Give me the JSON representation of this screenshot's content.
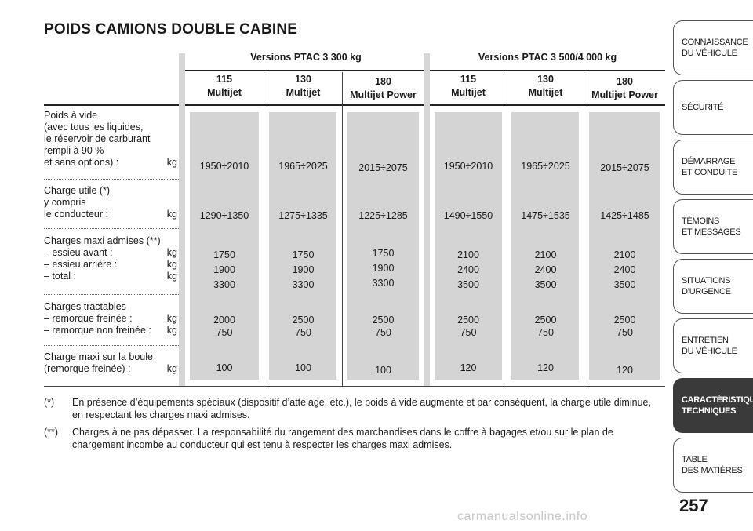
{
  "title": "POIDS CAMIONS DOUBLE CABINE",
  "groups": [
    {
      "label": "Versions PTAC 3 300 kg"
    },
    {
      "label": "Versions PTAC 3 500/4 000 kg"
    }
  ],
  "columns": [
    {
      "line1": "115",
      "line2": "Multijet"
    },
    {
      "line1": "130",
      "line2": "Multijet"
    },
    {
      "line1": "180",
      "line2": "Multijet Power"
    },
    {
      "line1": "115",
      "line2": "Multijet"
    },
    {
      "line1": "130",
      "line2": "Multijet"
    },
    {
      "line1": "180",
      "line2": "Multijet Power"
    }
  ],
  "rows": [
    {
      "label_lines": [
        "Poids à vide",
        "(avec tous les liquides,",
        "le réservoir de carburant",
        "rempli à 90 %",
        "et sans options) :"
      ],
      "unit": "kg",
      "values": [
        "1950÷2010",
        "1965÷2025",
        "2015÷2075",
        "1950÷2010",
        "1965÷2025",
        "2015÷2075"
      ]
    },
    {
      "label_lines": [
        "Charge utile (*)",
        "y compris",
        "le conducteur :"
      ],
      "unit": "kg",
      "values": [
        "1290÷1350",
        "1275÷1335",
        "1225÷1285",
        "1490÷1550",
        "1475÷1535",
        "1425÷1485"
      ]
    },
    {
      "label_lines": [
        "Charges maxi admises (**)",
        "– essieu avant :",
        "– essieu arrière :",
        "– total :"
      ],
      "units": [
        "",
        "kg",
        "kg",
        "kg"
      ],
      "values": [
        [
          "1750",
          "1900",
          "3300"
        ],
        [
          "1750",
          "1900",
          "3300"
        ],
        [
          "1750",
          "1900",
          "3300"
        ],
        [
          "2100",
          "2400",
          "3500"
        ],
        [
          "2100",
          "2400",
          "3500"
        ],
        [
          "2100",
          "2400",
          "3500"
        ]
      ]
    },
    {
      "label_lines": [
        "Charges tractables",
        "– remorque freinée :",
        "– remorque non freinée :"
      ],
      "units": [
        "",
        "kg",
        "kg"
      ],
      "values": [
        [
          "2000",
          "750"
        ],
        [
          "2500",
          "750"
        ],
        [
          "2500",
          "750"
        ],
        [
          "2500",
          "750"
        ],
        [
          "2500",
          "750"
        ],
        [
          "2500",
          "750"
        ]
      ]
    },
    {
      "label_lines": [
        "Charge maxi sur la boule",
        "(remorque freinée) :"
      ],
      "units": [
        "",
        "kg"
      ],
      "values": [
        "100",
        "100",
        "100",
        "120",
        "120",
        "120"
      ]
    }
  ],
  "footnotes": [
    {
      "mark": "(*)",
      "text": "En présence d’équipements spéciaux (dispositif d’attelage, etc.), le poids à vide augmente et par conséquent, la charge utile diminue, en respectant les charges maxi admises."
    },
    {
      "mark": "(**)",
      "text": "Charges à ne pas dépasser. La responsabilité du rangement des marchandises dans le coffre à bagages et/ou sur le plan de chargement incombe au conducteur qui est tenu à respecter les charges maxi admises."
    }
  ],
  "sidebar": {
    "tabs": [
      {
        "line1": "CONNAISSANCE",
        "line2": "DU VÉHICULE",
        "active": false
      },
      {
        "line1": "SÉCURITÉ",
        "line2": "",
        "active": false
      },
      {
        "line1": "DÉMARRAGE",
        "line2": "ET CONDUITE",
        "active": false
      },
      {
        "line1": "TÉMOINS",
        "line2": "ET MESSAGES",
        "active": false
      },
      {
        "line1": "SITUATIONS",
        "line2": "D’URGENCE",
        "active": false
      },
      {
        "line1": "ENTRETIEN",
        "line2": "DU VÉHICULE",
        "active": false
      },
      {
        "line1": "CARACTÉRISTIQUES",
        "line2": "TECHNIQUES",
        "active": true
      },
      {
        "line1": "TABLE",
        "line2": "DES MATIÈRES",
        "active": false
      }
    ]
  },
  "page_number": "257",
  "watermark": "carmanualsonline.info"
}
